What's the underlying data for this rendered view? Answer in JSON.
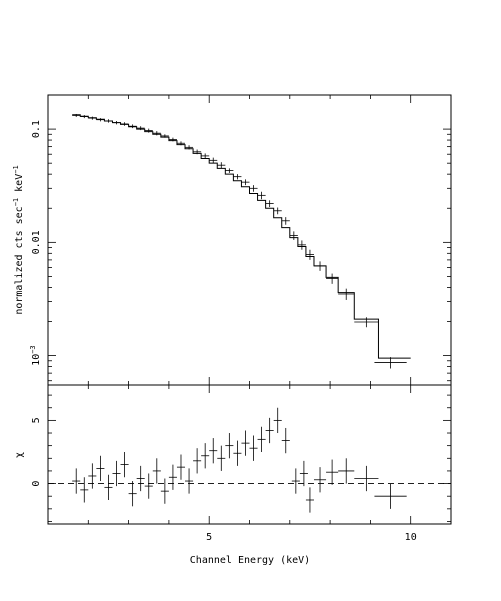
{
  "chart_data": [
    {
      "type": "scatter",
      "panel": "spectrum",
      "ylabel": "normalized cts sec^-1 keV^-1",
      "yscale": "log",
      "xlim": [
        1.0,
        11.0
      ],
      "ylim": [
        0.00055,
        0.2
      ],
      "y_ticks": [
        {
          "value": 0.1,
          "label": "0.1"
        },
        {
          "value": 0.01,
          "label": "0.01"
        },
        {
          "value": 0.001,
          "label": "10^-3"
        }
      ],
      "series": [
        {
          "points": [
            [
              1.7,
              0.132,
              0.004
            ],
            [
              1.9,
              0.129,
              0.004
            ],
            [
              2.1,
              0.125,
              0.004
            ],
            [
              2.3,
              0.121,
              0.004
            ],
            [
              2.5,
              0.118,
              0.004
            ],
            [
              2.7,
              0.114,
              0.004
            ],
            [
              2.9,
              0.111,
              0.004
            ],
            [
              3.1,
              0.106,
              0.004
            ],
            [
              3.3,
              0.102,
              0.004
            ],
            [
              3.5,
              0.097,
              0.004
            ],
            [
              3.7,
              0.092,
              0.004
            ],
            [
              3.9,
              0.087,
              0.003
            ],
            [
              4.1,
              0.081,
              0.003
            ],
            [
              4.3,
              0.075,
              0.003
            ],
            [
              4.5,
              0.069,
              0.003
            ],
            [
              4.7,
              0.063,
              0.003
            ],
            [
              4.9,
              0.058,
              0.003
            ],
            [
              5.1,
              0.053,
              0.003
            ],
            [
              5.3,
              0.048,
              0.003
            ],
            [
              5.5,
              0.043,
              0.002
            ],
            [
              5.7,
              0.038,
              0.002
            ],
            [
              5.9,
              0.034,
              0.002
            ],
            [
              6.1,
              0.03,
              0.002
            ],
            [
              6.3,
              0.026,
              0.002
            ],
            [
              6.5,
              0.022,
              0.0015
            ],
            [
              6.7,
              0.019,
              0.0013
            ],
            [
              6.9,
              0.0155,
              0.0012
            ],
            [
              7.1,
              0.0115,
              0.001
            ],
            [
              7.3,
              0.0095,
              0.0009
            ],
            [
              7.5,
              0.0078,
              0.0008
            ],
            [
              7.75,
              0.0062,
              0.0006
            ],
            [
              8.05,
              0.0048,
              0.0005
            ],
            [
              8.4,
              0.0035,
              0.0004
            ],
            [
              8.9,
              0.00198,
              0.0002
            ],
            [
              9.5,
              0.00087,
              0.0001
            ]
          ],
          "x_halfwidths": [
            0.1,
            0.1,
            0.1,
            0.1,
            0.1,
            0.1,
            0.1,
            0.1,
            0.1,
            0.1,
            0.1,
            0.1,
            0.1,
            0.1,
            0.1,
            0.1,
            0.1,
            0.1,
            0.1,
            0.1,
            0.1,
            0.1,
            0.1,
            0.1,
            0.1,
            0.1,
            0.1,
            0.1,
            0.1,
            0.1,
            0.15,
            0.15,
            0.2,
            0.3,
            0.4
          ]
        },
        {
          "steps": [
            [
              1.6,
              0.134
            ],
            [
              1.8,
              0.13
            ],
            [
              2.0,
              0.126
            ],
            [
              2.2,
              0.122
            ],
            [
              2.4,
              0.118
            ],
            [
              2.6,
              0.114
            ],
            [
              2.8,
              0.11
            ],
            [
              3.0,
              0.105
            ],
            [
              3.2,
              0.1
            ],
            [
              3.4,
              0.095
            ],
            [
              3.6,
              0.09
            ],
            [
              3.8,
              0.085
            ],
            [
              4.0,
              0.079
            ],
            [
              4.2,
              0.073
            ],
            [
              4.4,
              0.067
            ],
            [
              4.6,
              0.061
            ],
            [
              4.8,
              0.055
            ],
            [
              5.0,
              0.05
            ],
            [
              5.2,
              0.045
            ],
            [
              5.4,
              0.04
            ],
            [
              5.6,
              0.035
            ],
            [
              5.8,
              0.031
            ],
            [
              6.0,
              0.027
            ],
            [
              6.2,
              0.0235
            ],
            [
              6.4,
              0.02
            ],
            [
              6.6,
              0.0165
            ],
            [
              6.8,
              0.0135
            ],
            [
              7.0,
              0.011
            ],
            [
              7.2,
              0.0092
            ],
            [
              7.4,
              0.0075
            ],
            [
              7.6,
              0.0062
            ],
            [
              7.9,
              0.0049
            ],
            [
              8.2,
              0.0036
            ],
            [
              8.6,
              0.0021
            ],
            [
              9.2,
              0.00095
            ],
            [
              10.0,
              0.00095
            ]
          ]
        }
      ]
    },
    {
      "type": "scatter",
      "panel": "residuals",
      "xlabel": "Channel Energy (keV)",
      "ylabel": "χ",
      "xlim": [
        1.0,
        11.0
      ],
      "ylim": [
        -3.2,
        7.8
      ],
      "x_ticks": [
        {
          "value": 5,
          "label": "5"
        },
        {
          "value": 10,
          "label": "10"
        }
      ],
      "y_ticks": [
        {
          "value": 0,
          "label": "0"
        },
        {
          "value": 5,
          "label": "5"
        }
      ],
      "reference_line": 0,
      "series": [
        {
          "points": [
            [
              1.7,
              0.2,
              1.0
            ],
            [
              1.9,
              -0.5,
              1.0
            ],
            [
              2.1,
              0.6,
              1.0
            ],
            [
              2.3,
              1.2,
              1.0
            ],
            [
              2.5,
              -0.3,
              1.0
            ],
            [
              2.7,
              0.8,
              1.0
            ],
            [
              2.9,
              1.5,
              1.0
            ],
            [
              3.1,
              -0.8,
              1.0
            ],
            [
              3.3,
              0.4,
              1.0
            ],
            [
              3.5,
              -0.2,
              1.0
            ],
            [
              3.7,
              1.0,
              1.0
            ],
            [
              3.9,
              -0.6,
              1.0
            ],
            [
              4.1,
              0.5,
              1.0
            ],
            [
              4.3,
              1.3,
              1.0
            ],
            [
              4.5,
              0.2,
              1.0
            ],
            [
              4.7,
              1.8,
              1.0
            ],
            [
              4.9,
              2.2,
              1.0
            ],
            [
              5.1,
              2.6,
              1.0
            ],
            [
              5.3,
              2.0,
              1.0
            ],
            [
              5.5,
              3.0,
              1.0
            ],
            [
              5.7,
              2.4,
              1.0
            ],
            [
              5.9,
              3.2,
              1.0
            ],
            [
              6.1,
              2.8,
              1.0
            ],
            [
              6.3,
              3.5,
              1.0
            ],
            [
              6.5,
              4.2,
              1.0
            ],
            [
              6.7,
              5.0,
              1.0
            ],
            [
              6.9,
              3.4,
              1.0
            ],
            [
              7.15,
              0.2,
              1.0
            ],
            [
              7.35,
              0.8,
              1.0
            ],
            [
              7.5,
              -1.3,
              1.0
            ],
            [
              7.75,
              0.3,
              1.0
            ],
            [
              8.05,
              0.9,
              1.0
            ],
            [
              8.4,
              1.0,
              1.0
            ],
            [
              8.9,
              0.4,
              1.0
            ],
            [
              9.5,
              -1.0,
              1.0
            ]
          ],
          "x_halfwidths": [
            0.1,
            0.1,
            0.1,
            0.1,
            0.1,
            0.1,
            0.1,
            0.1,
            0.1,
            0.1,
            0.1,
            0.1,
            0.1,
            0.1,
            0.1,
            0.1,
            0.1,
            0.1,
            0.1,
            0.1,
            0.1,
            0.1,
            0.1,
            0.1,
            0.1,
            0.1,
            0.1,
            0.1,
            0.1,
            0.1,
            0.15,
            0.15,
            0.2,
            0.3,
            0.4
          ]
        }
      ]
    }
  ]
}
